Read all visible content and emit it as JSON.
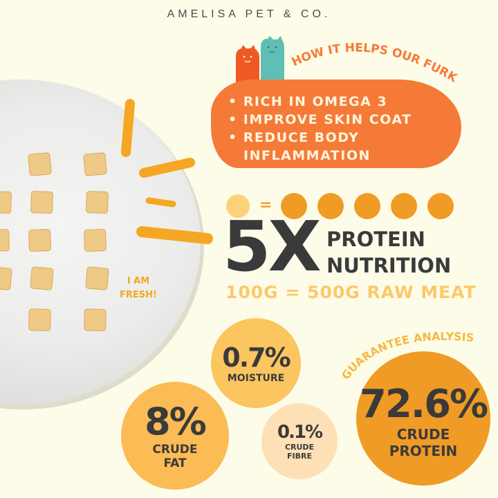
{
  "brand": "AMELISA PET & CO.",
  "benefits": {
    "heading": "HOW IT HELPS OUR FURKID",
    "items": [
      "RICH IN OMEGA 3",
      "IMPROVE SKIN COAT",
      "REDUCE BODY",
      "INFLAMMATION"
    ]
  },
  "plate_label": {
    "line1": "I AM",
    "line2": "FRESH!"
  },
  "equation": {
    "equals": "=",
    "multiplier_count": 5
  },
  "protein": {
    "big": "5X",
    "line1": "PROTEIN",
    "line2": "NUTRITION",
    "equivalence": "100G = 500G RAW MEAT"
  },
  "analysis": {
    "heading": "GUARANTEE ANALYSIS",
    "moisture": {
      "value": "0.7%",
      "label": "MOISTURE"
    },
    "fat": {
      "value": "8%",
      "label1": "CRUDE",
      "label2": "FAT"
    },
    "fibre": {
      "value": "0.1%",
      "label1": "CRUDE",
      "label2": "FIBRE"
    },
    "protein": {
      "value": "72.6%",
      "label1": "CRUDE",
      "label2": "PROTEIN"
    }
  },
  "colors": {
    "background": "#fdfce9",
    "orange": "#f57a37",
    "accent": "#f09b25",
    "teal": "#5fbfb5",
    "dark": "#3a3a3a"
  }
}
